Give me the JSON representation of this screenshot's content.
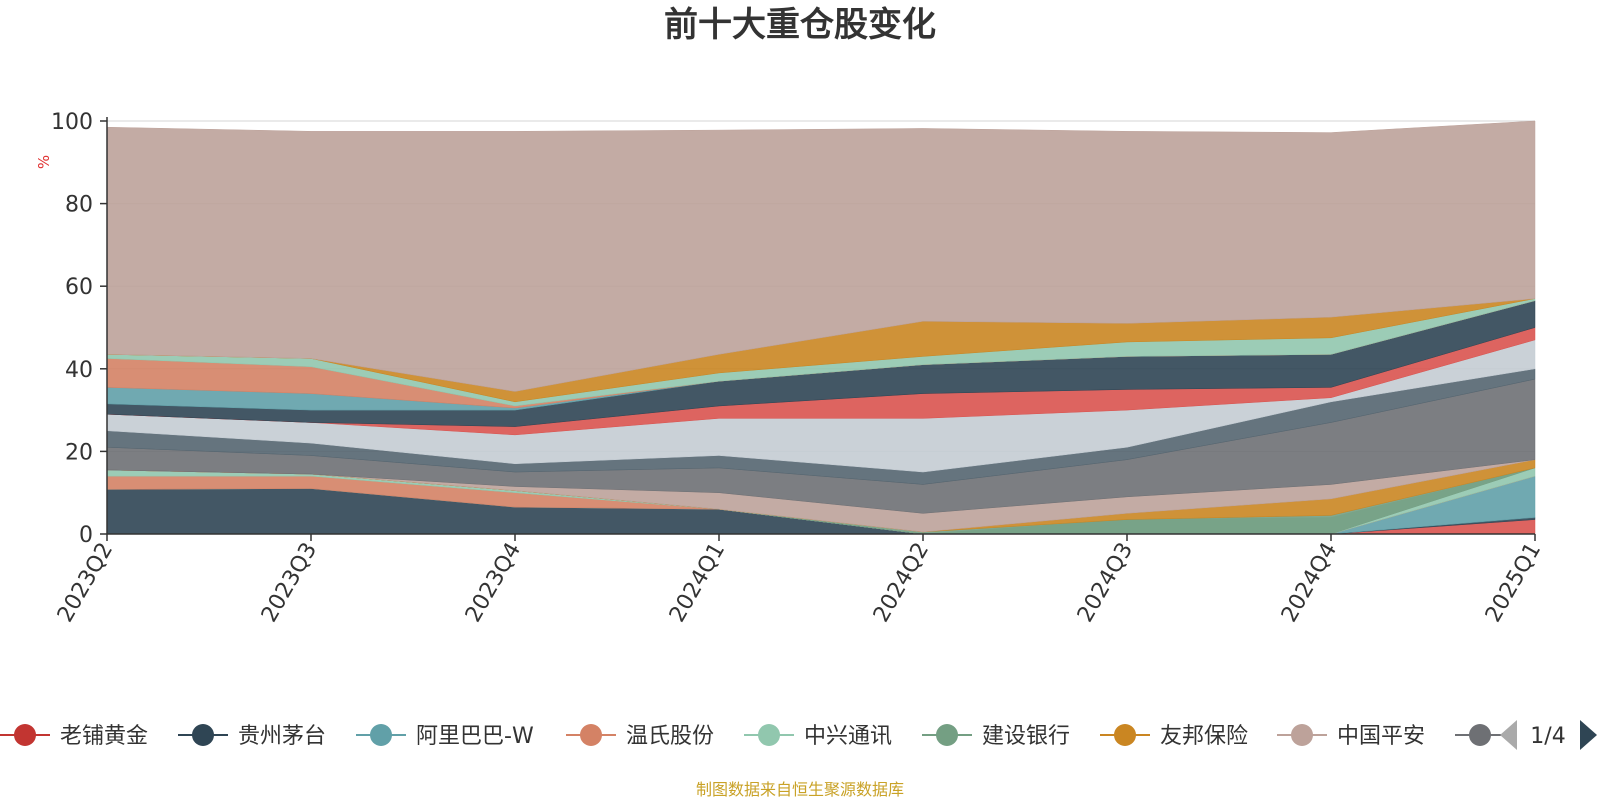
{
  "chart_data": {
    "type": "area",
    "title": "前十大重仓股变化",
    "ylabel": "%",
    "ylim": [
      0,
      100
    ],
    "yticks": [
      0,
      20,
      40,
      60,
      80,
      100
    ],
    "categories": [
      "2023Q2",
      "2023Q3",
      "2023Q4",
      "2024Q1",
      "2024Q2",
      "2024Q3",
      "2024Q4",
      "2025Q1"
    ],
    "grid": true,
    "legend_position": "bottom",
    "legend_page": "1/4",
    "series": [
      {
        "name": "老铺黄金",
        "color": "#d9534f",
        "lower": [
          0,
          0,
          0,
          0,
          0,
          0,
          0,
          0
        ],
        "upper": [
          0,
          0,
          0,
          0,
          0,
          0,
          0,
          3.5
        ]
      },
      {
        "name": "贵州茅台",
        "color": "#2f4554",
        "lower": [
          0,
          0,
          0,
          0,
          0,
          0,
          0,
          3.5
        ],
        "upper": [
          10.8,
          11,
          6.5,
          6,
          0,
          0,
          0,
          4
        ]
      },
      {
        "name": "阿里巴巴-W",
        "color": "#61a0a8",
        "lower": [
          10.8,
          11,
          6.5,
          6,
          0,
          0,
          0,
          4
        ],
        "upper": [
          10.8,
          11,
          6.5,
          6,
          0,
          0,
          0,
          14
        ]
      },
      {
        "name": "温氏股份",
        "color": "#d48265",
        "lower": [
          10.8,
          11,
          6.5,
          6,
          0,
          0,
          0,
          14
        ],
        "upper": [
          14,
          14,
          10,
          6,
          0,
          0,
          0,
          14
        ]
      },
      {
        "name": "中兴通讯",
        "color": "#91c7ae",
        "lower": [
          14,
          14,
          10,
          6,
          0,
          0,
          0,
          14
        ],
        "upper": [
          15.5,
          14.5,
          10.5,
          6,
          0,
          3.5,
          4,
          16
        ]
      },
      {
        "name": "建设银行",
        "color": "#749f83",
        "lower": [
          15.5,
          14.5,
          10.5,
          6,
          0,
          0,
          0,
          16
        ],
        "upper": [
          15.5,
          14.5,
          10.5,
          6,
          0.5,
          3.5,
          4.5,
          16
        ]
      },
      {
        "name": "友邦保险",
        "color": "#ca8622",
        "lower": [
          15.5,
          14.5,
          10.5,
          6,
          0.5,
          3.5,
          4.5,
          16
        ],
        "upper": [
          15.5,
          14.5,
          10.5,
          6,
          0.5,
          5,
          8.5,
          18
        ]
      },
      {
        "name": "中国平安",
        "color": "#bda29a",
        "lower": [
          15.5,
          14.5,
          10.5,
          6,
          0.5,
          5,
          8.5,
          18
        ],
        "upper": [
          15.5,
          14.5,
          11.5,
          10,
          5,
          9,
          12,
          18
        ]
      },
      {
        "name": "",
        "color": "#6e7074",
        "lower": [
          15.5,
          14.5,
          11.5,
          10,
          5,
          9,
          12,
          18
        ],
        "upper": [
          21,
          19,
          15,
          16,
          12,
          18,
          27,
          37.5
        ]
      },
      {
        "name": "",
        "color": "#546570",
        "lower": [
          21,
          19,
          15,
          16,
          12,
          18,
          27,
          37.5
        ],
        "upper": [
          25,
          22,
          17,
          19,
          15,
          21,
          32,
          40
        ]
      },
      {
        "name": "",
        "color": "#c4ccd3",
        "lower": [
          25,
          22,
          17,
          19,
          15,
          21,
          32,
          40
        ],
        "upper": [
          29,
          27,
          24,
          28,
          28,
          30,
          33,
          47
        ]
      },
      {
        "name": "",
        "color": "#d9534f",
        "lower": [
          29,
          27,
          24,
          28,
          28,
          30,
          33,
          47
        ],
        "upper": [
          29,
          27,
          26,
          31,
          34,
          35,
          35.5,
          50
        ]
      },
      {
        "name": "",
        "color": "#2f4554",
        "lower": [
          29,
          27,
          26,
          31,
          34,
          35,
          35.5,
          50
        ],
        "upper": [
          31.5,
          30,
          30,
          37,
          41,
          43,
          43.5,
          56.5
        ]
      },
      {
        "name": "",
        "color": "#61a0a8",
        "lower": [
          31.5,
          30,
          30,
          37,
          41,
          43,
          43.5,
          56.5
        ],
        "upper": [
          35.5,
          34,
          30.5,
          37,
          41,
          43,
          43.5,
          56.5
        ]
      },
      {
        "name": "",
        "color": "#d48265",
        "lower": [
          35.5,
          34,
          30.5,
          37,
          41,
          43,
          43.5,
          56.5
        ],
        "upper": [
          42.5,
          40.5,
          31,
          37,
          41,
          43,
          43.5,
          56.5
        ]
      },
      {
        "name": "",
        "color": "#91c7ae",
        "lower": [
          42.5,
          40.5,
          31,
          37,
          41,
          43,
          43.5,
          56.5
        ],
        "upper": [
          43.5,
          42.5,
          32,
          39,
          43,
          46.5,
          47.5,
          57
        ]
      },
      {
        "name": "",
        "color": "#ca8622",
        "lower": [
          43.5,
          42.5,
          32,
          39,
          43,
          46.5,
          47.5,
          57
        ],
        "upper": [
          43.5,
          42.5,
          34.5,
          43.5,
          51.5,
          51,
          52.5,
          57
        ]
      },
      {
        "name": "",
        "color": "#bda29a",
        "lower": [
          43.5,
          42.5,
          34.5,
          43.5,
          51.5,
          51,
          52.5,
          57
        ],
        "upper": [
          98.5,
          97.5,
          97.5,
          97.8,
          98.2,
          97.5,
          97.2,
          100
        ]
      }
    ],
    "legend": [
      {
        "name": "老铺黄金",
        "color": "#c23531"
      },
      {
        "name": "贵州茅台",
        "color": "#2f4554"
      },
      {
        "name": "阿里巴巴-W",
        "color": "#61a0a8"
      },
      {
        "name": "温氏股份",
        "color": "#d48265"
      },
      {
        "name": "中兴通讯",
        "color": "#91c7ae"
      },
      {
        "name": "建设银行",
        "color": "#749f83"
      },
      {
        "name": "友邦保险",
        "color": "#ca8622"
      },
      {
        "name": "中国平安",
        "color": "#bda29a"
      },
      {
        "name": "",
        "color": "#6e7074"
      }
    ],
    "source_note": "制图数据来自恒生聚源数据库"
  }
}
